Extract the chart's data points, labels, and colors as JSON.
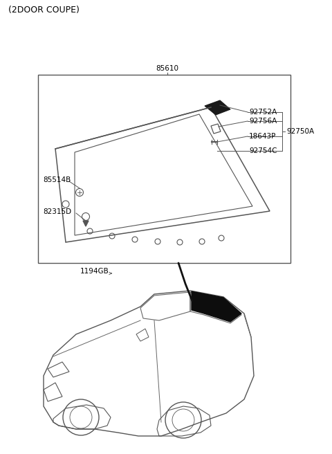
{
  "title": "(2DOOR COUPE)",
  "bg_color": "#ffffff",
  "box_color": "#333333",
  "text_color": "#000000",
  "label_85610": "85610",
  "label_92752A": "92752A",
  "label_92756A": "92756A",
  "label_92750A": "92750A",
  "label_18643P": "18643P",
  "label_92754C": "92754C",
  "label_85514B": "85514B",
  "label_82315D": "82315D",
  "label_1194GB": "1194GB",
  "font_size_title": 9,
  "font_size_labels": 7.5
}
